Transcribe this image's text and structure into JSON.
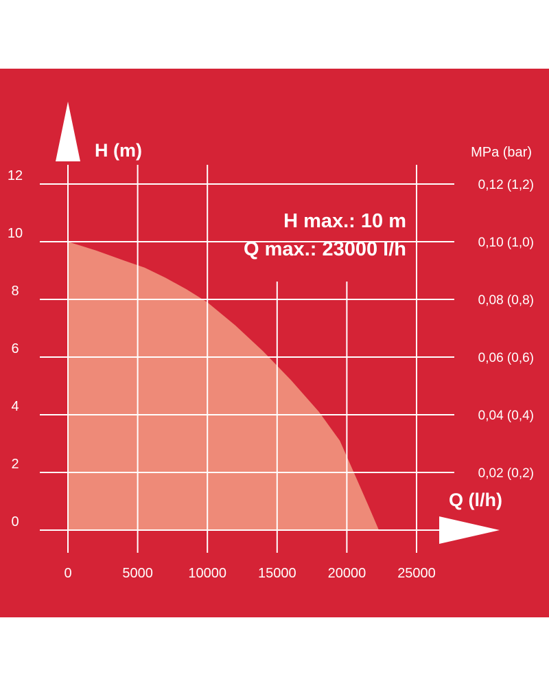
{
  "colors": {
    "background": "#ffffff",
    "panel": "#d52336",
    "grid": "#ffffff",
    "fill": "#ee8a78",
    "text": "#ffffff"
  },
  "chart_data": {
    "type": "area",
    "xlabel": "Q (l/h)",
    "ylabel": "H (m)",
    "y2label": "MPa (bar)",
    "xlim": [
      0,
      25000
    ],
    "ylim": [
      0,
      12
    ],
    "x_ticks": [
      0,
      5000,
      10000,
      15000,
      20000,
      25000
    ],
    "x_tick_labels": [
      "0",
      "5000",
      "10000",
      "15000",
      "20000",
      "25000"
    ],
    "y_ticks": [
      0,
      2,
      4,
      6,
      8,
      10,
      12
    ],
    "y_tick_labels": [
      "0",
      "2",
      "4",
      "6",
      "8",
      "10",
      "12"
    ],
    "y2_ticks": [
      2,
      4,
      6,
      8,
      10,
      12
    ],
    "y2_tick_labels": [
      "0,02 (0,2)",
      "0,04 (0,4)",
      "0,06 (0,6)",
      "0,08 (0,8)",
      "0,10 (1,0)",
      "0,12 (1,2)"
    ],
    "annotations": [
      "H max.: 10 m",
      "Q max.: 23000 l/h"
    ],
    "grid": true,
    "series": [
      {
        "x": [
          0,
          2000,
          4000,
          5500,
          7000,
          8500,
          10000,
          12000,
          14000,
          16000,
          18000,
          19500,
          20500,
          21500,
          22300
        ],
        "y": [
          10,
          9.7,
          9.35,
          9.1,
          8.75,
          8.35,
          7.9,
          7.1,
          6.2,
          5.2,
          4.1,
          3.1,
          2.0,
          0.9,
          0
        ]
      }
    ]
  }
}
